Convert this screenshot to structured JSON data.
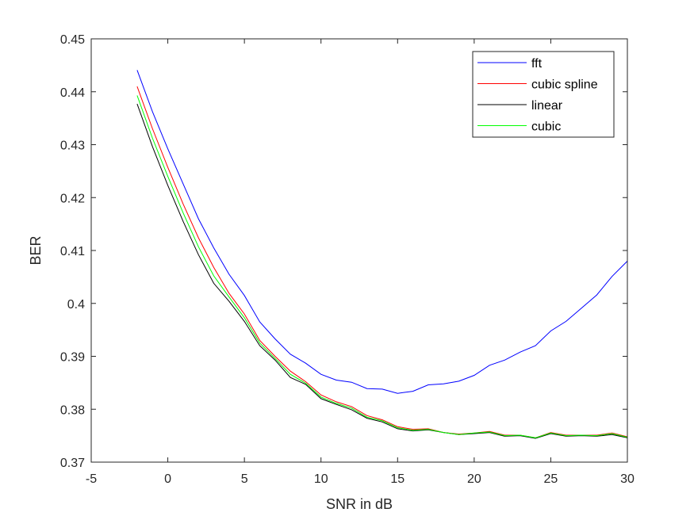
{
  "chart_data": {
    "type": "line",
    "title": "",
    "xlabel": "SNR in dB",
    "ylabel": "BER",
    "xlim": [
      -5,
      30
    ],
    "ylim": [
      0.37,
      0.45
    ],
    "xticks": [
      "-5",
      "0",
      "5",
      "10",
      "15",
      "20",
      "25",
      "30"
    ],
    "yticks": [
      "0.37",
      "0.38",
      "0.39",
      "0.4",
      "0.41",
      "0.42",
      "0.43",
      "0.44",
      "0.45"
    ],
    "grid": false,
    "legend_position": "top-right",
    "x": [
      -2,
      -1,
      0,
      1,
      2,
      3,
      4,
      5,
      6,
      7,
      8,
      9,
      10,
      11,
      12,
      13,
      14,
      15,
      16,
      17,
      18,
      19,
      20,
      21,
      22,
      23,
      24,
      25,
      26,
      27,
      28,
      29,
      30
    ],
    "series": [
      {
        "name": "fft",
        "color": "#0000ff",
        "values": [
          0.4441,
          0.4362,
          0.4292,
          0.4226,
          0.416,
          0.4105,
          0.4055,
          0.4015,
          0.3965,
          0.3933,
          0.3904,
          0.3887,
          0.3866,
          0.3855,
          0.3851,
          0.3839,
          0.3838,
          0.383,
          0.3834,
          0.3846,
          0.3848,
          0.3853,
          0.3864,
          0.3883,
          0.3893,
          0.3908,
          0.392,
          0.3948,
          0.3966,
          0.3991,
          0.4016,
          0.4051,
          0.408
        ]
      },
      {
        "name": "cubic spline",
        "color": "#ff0000",
        "values": [
          0.441,
          0.433,
          0.4257,
          0.4188,
          0.4124,
          0.4068,
          0.4019,
          0.398,
          0.393,
          0.39,
          0.3872,
          0.3852,
          0.3827,
          0.3814,
          0.3805,
          0.3788,
          0.378,
          0.3767,
          0.3762,
          0.3763,
          0.3756,
          0.3753,
          0.3755,
          0.3758,
          0.3751,
          0.3751,
          0.3746,
          0.3756,
          0.3751,
          0.3751,
          0.3751,
          0.3755,
          0.3748
        ]
      },
      {
        "name": "linear",
        "color": "#000000",
        "values": [
          0.4377,
          0.4296,
          0.4223,
          0.4155,
          0.4092,
          0.4038,
          0.4004,
          0.3966,
          0.392,
          0.3893,
          0.386,
          0.3847,
          0.382,
          0.3809,
          0.3799,
          0.3783,
          0.3776,
          0.3763,
          0.3759,
          0.3761,
          0.3756,
          0.3752,
          0.3754,
          0.3756,
          0.3749,
          0.375,
          0.3745,
          0.3754,
          0.3749,
          0.375,
          0.3749,
          0.3752,
          0.3746
        ]
      },
      {
        "name": "cubic",
        "color": "#00ff00",
        "values": [
          0.4393,
          0.4312,
          0.424,
          0.4171,
          0.4107,
          0.4052,
          0.4012,
          0.3973,
          0.3925,
          0.3896,
          0.3866,
          0.3849,
          0.3823,
          0.3811,
          0.3802,
          0.3785,
          0.3778,
          0.3765,
          0.376,
          0.3762,
          0.3756,
          0.3752,
          0.3755,
          0.3757,
          0.375,
          0.3751,
          0.3746,
          0.3755,
          0.375,
          0.3751,
          0.375,
          0.3754,
          0.3747
        ]
      }
    ]
  }
}
